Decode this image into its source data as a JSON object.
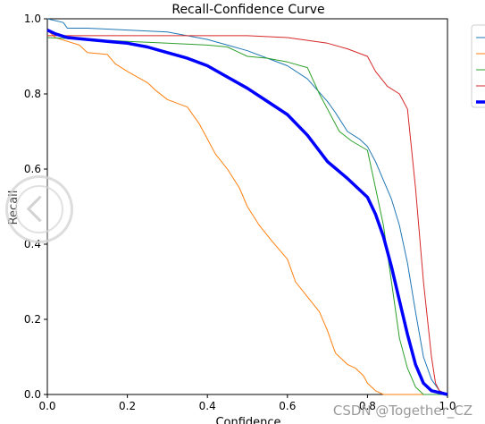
{
  "chart_data": {
    "type": "line",
    "title": "Recall-Confidence Curve",
    "xlabel": "Confidence",
    "ylabel": "Recall",
    "xlim": [
      0.0,
      1.0
    ],
    "ylim": [
      0.0,
      1.0
    ],
    "xticks": [
      "0.0",
      "0.2",
      "0.4",
      "0.6",
      "0.8",
      "1.0"
    ],
    "yticks": [
      "0.0",
      "0.2",
      "0.4",
      "0.6",
      "0.8",
      "1.0"
    ],
    "grid": false,
    "legend": "outside-right",
    "series": [
      {
        "color": "#1f77b4",
        "width": 1,
        "points": [
          [
            0,
            1
          ],
          [
            0.04,
            0.99
          ],
          [
            0.05,
            0.975
          ],
          [
            0.1,
            0.975
          ],
          [
            0.2,
            0.97
          ],
          [
            0.3,
            0.965
          ],
          [
            0.4,
            0.945
          ],
          [
            0.45,
            0.93
          ],
          [
            0.5,
            0.915
          ],
          [
            0.55,
            0.895
          ],
          [
            0.6,
            0.875
          ],
          [
            0.65,
            0.84
          ],
          [
            0.7,
            0.78
          ],
          [
            0.72,
            0.75
          ],
          [
            0.75,
            0.7
          ],
          [
            0.78,
            0.68
          ],
          [
            0.8,
            0.66
          ],
          [
            0.82,
            0.62
          ],
          [
            0.84,
            0.57
          ],
          [
            0.86,
            0.52
          ],
          [
            0.88,
            0.45
          ],
          [
            0.9,
            0.35
          ],
          [
            0.92,
            0.22
          ],
          [
            0.94,
            0.1
          ],
          [
            0.96,
            0.04
          ],
          [
            0.98,
            0.01
          ],
          [
            1.0,
            0
          ]
        ]
      },
      {
        "color": "#ff7f0e",
        "width": 1,
        "points": [
          [
            0,
            0.97
          ],
          [
            0.02,
            0.95
          ],
          [
            0.05,
            0.94
          ],
          [
            0.08,
            0.93
          ],
          [
            0.1,
            0.91
          ],
          [
            0.15,
            0.905
          ],
          [
            0.17,
            0.88
          ],
          [
            0.2,
            0.86
          ],
          [
            0.25,
            0.83
          ],
          [
            0.27,
            0.81
          ],
          [
            0.3,
            0.785
          ],
          [
            0.35,
            0.765
          ],
          [
            0.38,
            0.72
          ],
          [
            0.4,
            0.68
          ],
          [
            0.42,
            0.64
          ],
          [
            0.45,
            0.6
          ],
          [
            0.48,
            0.55
          ],
          [
            0.5,
            0.5
          ],
          [
            0.53,
            0.45
          ],
          [
            0.56,
            0.41
          ],
          [
            0.6,
            0.36
          ],
          [
            0.62,
            0.3
          ],
          [
            0.65,
            0.26
          ],
          [
            0.68,
            0.22
          ],
          [
            0.7,
            0.17
          ],
          [
            0.72,
            0.11
          ],
          [
            0.75,
            0.08
          ],
          [
            0.77,
            0.07
          ],
          [
            0.79,
            0.05
          ],
          [
            0.8,
            0.03
          ],
          [
            0.82,
            0.01
          ],
          [
            0.84,
            0
          ],
          [
            1.0,
            0
          ]
        ]
      },
      {
        "color": "#2ca02c",
        "width": 1,
        "points": [
          [
            0,
            0.95
          ],
          [
            0.1,
            0.945
          ],
          [
            0.2,
            0.94
          ],
          [
            0.3,
            0.935
          ],
          [
            0.4,
            0.93
          ],
          [
            0.45,
            0.925
          ],
          [
            0.48,
            0.91
          ],
          [
            0.5,
            0.9
          ],
          [
            0.55,
            0.895
          ],
          [
            0.6,
            0.885
          ],
          [
            0.65,
            0.87
          ],
          [
            0.68,
            0.8
          ],
          [
            0.7,
            0.76
          ],
          [
            0.73,
            0.7
          ],
          [
            0.76,
            0.675
          ],
          [
            0.8,
            0.65
          ],
          [
            0.82,
            0.55
          ],
          [
            0.84,
            0.45
          ],
          [
            0.86,
            0.3
          ],
          [
            0.88,
            0.15
          ],
          [
            0.9,
            0.07
          ],
          [
            0.92,
            0.02
          ],
          [
            0.94,
            0
          ],
          [
            1.0,
            0
          ]
        ]
      },
      {
        "color": "#d62728",
        "width": 1,
        "points": [
          [
            0,
            0.955
          ],
          [
            0.2,
            0.955
          ],
          [
            0.4,
            0.955
          ],
          [
            0.5,
            0.955
          ],
          [
            0.6,
            0.95
          ],
          [
            0.7,
            0.935
          ],
          [
            0.75,
            0.92
          ],
          [
            0.8,
            0.9
          ],
          [
            0.82,
            0.86
          ],
          [
            0.85,
            0.82
          ],
          [
            0.88,
            0.8
          ],
          [
            0.9,
            0.76
          ],
          [
            0.92,
            0.55
          ],
          [
            0.94,
            0.3
          ],
          [
            0.96,
            0.1
          ],
          [
            0.97,
            0.03
          ],
          [
            0.98,
            0.01
          ],
          [
            1.0,
            0
          ]
        ]
      },
      {
        "color": "#0000ff",
        "width": 3.5,
        "points": [
          [
            0,
            0.97
          ],
          [
            0.02,
            0.96
          ],
          [
            0.05,
            0.95
          ],
          [
            0.1,
            0.945
          ],
          [
            0.15,
            0.94
          ],
          [
            0.2,
            0.935
          ],
          [
            0.25,
            0.925
          ],
          [
            0.3,
            0.91
          ],
          [
            0.35,
            0.895
          ],
          [
            0.4,
            0.875
          ],
          [
            0.45,
            0.845
          ],
          [
            0.5,
            0.815
          ],
          [
            0.55,
            0.78
          ],
          [
            0.6,
            0.745
          ],
          [
            0.65,
            0.69
          ],
          [
            0.7,
            0.62
          ],
          [
            0.75,
            0.575
          ],
          [
            0.8,
            0.525
          ],
          [
            0.82,
            0.48
          ],
          [
            0.84,
            0.42
          ],
          [
            0.86,
            0.34
          ],
          [
            0.88,
            0.25
          ],
          [
            0.9,
            0.16
          ],
          [
            0.92,
            0.08
          ],
          [
            0.94,
            0.03
          ],
          [
            0.96,
            0.01
          ],
          [
            1.0,
            0
          ]
        ]
      }
    ]
  },
  "watermark": "CSDN @Together_CZ"
}
